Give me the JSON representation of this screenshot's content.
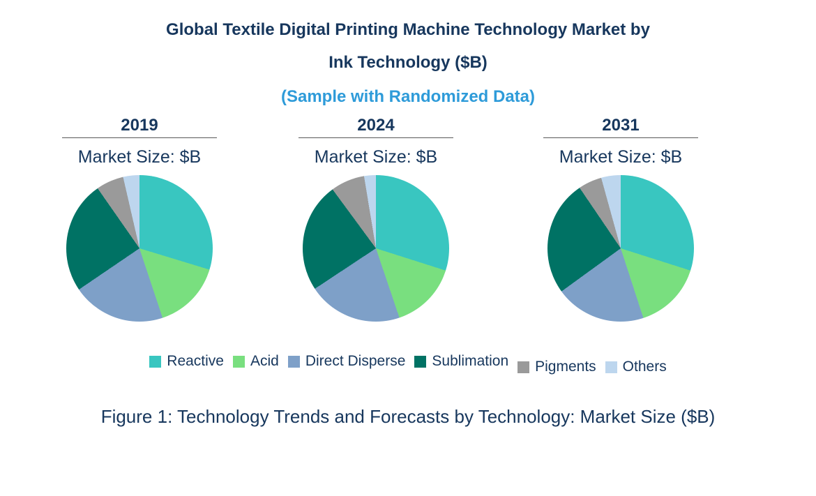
{
  "header": {
    "title_line1": "Global Textile Digital Printing Machine Technology Market by",
    "title_line2": "Ink Technology ($B)",
    "subtitle": "(Sample with Randomized Data)"
  },
  "caption": "Figure 1: Technology Trends and Forecasts by Technology: Market Size ($B)",
  "palette": {
    "title_navy": "#17375D",
    "subtitle_blue": "#2E9BD9",
    "underline_gray": "#595959"
  },
  "chart_data": {
    "type": "pie",
    "title": "Global Textile Digital Printing Machine Technology Market by Ink Technology ($B)",
    "subtitle": "(Sample with Randomized Data)",
    "legend_position": "bottom",
    "legend_order": "clockwise-from-top",
    "unit": "% share of market (estimated from slice angles; $B values not labeled)",
    "categories": [
      "Reactive",
      "Acid",
      "Direct Disperse",
      "Sublimation",
      "Pigments",
      "Others"
    ],
    "colors": [
      "#39C6C0",
      "#79DF7F",
      "#7EA0C8",
      "#007264",
      "#9A9A9A",
      "#BDD6EE"
    ],
    "charts": [
      {
        "year": "2019",
        "market_size_label": "Market Size: $B",
        "values": [
          29.7,
          15.2,
          20.6,
          24.8,
          6.1,
          3.6
        ]
      },
      {
        "year": "2024",
        "market_size_label": "Market Size: $B",
        "values": [
          29.9,
          14.9,
          20.9,
          24.2,
          7.5,
          2.6
        ]
      },
      {
        "year": "2031",
        "market_size_label": "Market Size: $B",
        "values": [
          29.9,
          15.1,
          20.0,
          25.5,
          5.2,
          4.3
        ]
      }
    ]
  }
}
